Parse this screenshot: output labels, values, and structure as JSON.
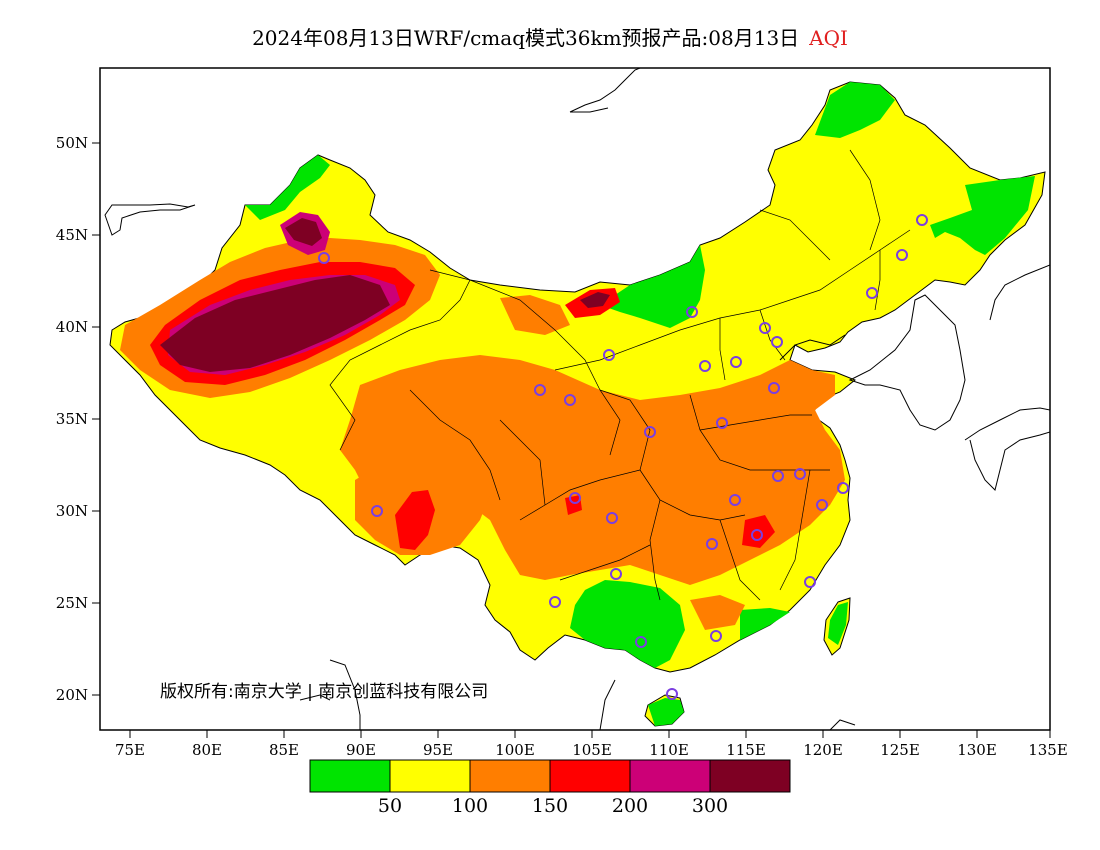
{
  "title": {
    "main": "2024年08月13日WRF/cmaq模式36km预报产品:08月13日",
    "variable": "AQI",
    "variable_color": "#e02020"
  },
  "copyright": "版权所有:南京大学 | 南京创蓝科技有限公司",
  "axes": {
    "lat_labels": [
      "50N",
      "45N",
      "40N",
      "35N",
      "30N",
      "25N",
      "20N"
    ],
    "lon_labels": [
      "75E",
      "80E",
      "85E",
      "90E",
      "95E",
      "100E",
      "105E",
      "110E",
      "115E",
      "120E",
      "125E",
      "130E",
      "135E"
    ]
  },
  "legend": {
    "colors": [
      "#00e400",
      "#ffff00",
      "#ff7e00",
      "#ff0000",
      "#cc0077",
      "#7e0023"
    ],
    "labels": [
      "50",
      "100",
      "150",
      "200",
      "300"
    ]
  },
  "markers": {
    "stroke": "#7b3fe0"
  }
}
